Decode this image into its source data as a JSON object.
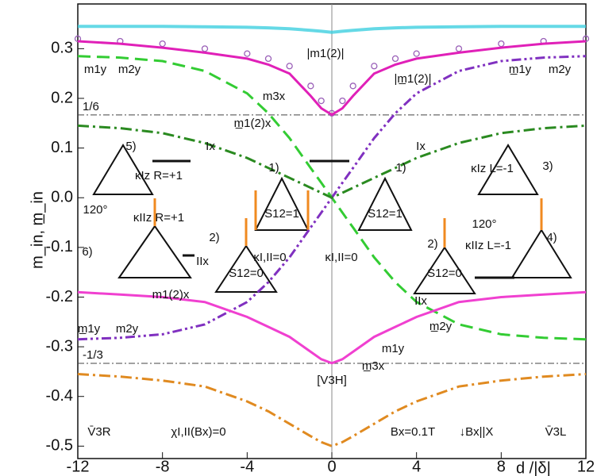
{
  "chart_data": {
    "type": "line",
    "x_label": "d /|δ|",
    "y_label": "m_in, m̲_in",
    "xlim": [
      -12,
      12
    ],
    "ylim": [
      -0.525,
      0.39
    ],
    "xticks": [
      -12,
      -8,
      -4,
      0,
      4,
      8,
      12
    ],
    "yticks": [
      -0.5,
      -0.4,
      -0.3,
      -0.2,
      -0.1,
      {
        "value": 0,
        "label": "0.0"
      },
      0.1,
      0.2,
      0.3
    ],
    "hlines": [
      {
        "value": 0.1667,
        "label": "1/6"
      },
      {
        "value": -0.3333,
        "label": "-1/3"
      }
    ],
    "x": [
      -12,
      -10,
      -8,
      -6,
      -4,
      -3,
      -2,
      -1,
      -0.5,
      0,
      0.5,
      1,
      2,
      3,
      4,
      6,
      8,
      10,
      12
    ],
    "series": [
      {
        "name": "|m1(2)|",
        "color": "#3fd0e0",
        "style": "markers-line",
        "values": [
          0.345,
          0.345,
          0.345,
          0.344,
          0.343,
          0.342,
          0.34,
          0.337,
          0.335,
          0.333,
          0.335,
          0.337,
          0.34,
          0.342,
          0.343,
          0.344,
          0.345,
          0.345,
          0.345
        ]
      },
      {
        "name": "|m̲1(2)|",
        "color": "#9a60b8",
        "style": "circles",
        "values": [
          0.32,
          0.315,
          0.31,
          0.3,
          0.29,
          0.28,
          0.265,
          0.225,
          0.195,
          0.17,
          0.195,
          0.225,
          0.265,
          0.28,
          0.29,
          0.3,
          0.31,
          0.315,
          0.32
        ]
      },
      {
        "name": "m3x",
        "color": "#e020b8",
        "style": "solid",
        "values": [
          0.315,
          0.31,
          0.302,
          0.292,
          0.28,
          0.268,
          0.25,
          0.205,
          0.18,
          0.167,
          0.18,
          0.205,
          0.25,
          0.268,
          0.28,
          0.292,
          0.302,
          0.31,
          0.315
        ]
      },
      {
        "name": "m1y",
        "color": "#33cc33",
        "style": "dash",
        "values": [
          0.285,
          0.282,
          0.275,
          0.255,
          0.21,
          0.17,
          0.12,
          0.06,
          0.03,
          0,
          -0.03,
          -0.06,
          -0.12,
          -0.17,
          -0.21,
          -0.255,
          -0.275,
          -0.282,
          -0.285
        ]
      },
      {
        "name": "m2y",
        "color": "#8030c0",
        "style": "dashdotdot",
        "values": [
          -0.285,
          -0.282,
          -0.275,
          -0.255,
          -0.21,
          -0.17,
          -0.12,
          -0.06,
          -0.03,
          0,
          0.03,
          0.06,
          0.12,
          0.17,
          0.21,
          0.255,
          0.275,
          0.282,
          0.285
        ]
      },
      {
        "name": "m1(2)x",
        "color": "#2a8a20",
        "style": "dashdot",
        "values": [
          0.145,
          0.14,
          0.13,
          0.11,
          0.08,
          0.06,
          0.04,
          0.02,
          0.01,
          0,
          0.01,
          0.02,
          0.04,
          0.06,
          0.08,
          0.11,
          0.13,
          0.14,
          0.145
        ]
      },
      {
        "name": "m̲1(2)x",
        "color": "#f040d0",
        "style": "solid",
        "values": [
          -0.19,
          -0.195,
          -0.2,
          -0.21,
          -0.24,
          -0.26,
          -0.28,
          -0.31,
          -0.325,
          -0.333,
          -0.325,
          -0.31,
          -0.28,
          -0.26,
          -0.24,
          -0.21,
          -0.2,
          -0.195,
          -0.19
        ]
      },
      {
        "name": "m̲3x",
        "color": "#e08a20",
        "style": "dashdot",
        "values": [
          -0.355,
          -0.36,
          -0.368,
          -0.38,
          -0.41,
          -0.43,
          -0.455,
          -0.48,
          -0.492,
          -0.5,
          -0.492,
          -0.48,
          -0.455,
          -0.43,
          -0.41,
          -0.38,
          -0.368,
          -0.36,
          -0.355
        ]
      }
    ],
    "annotations": [
      "|m1(2)|",
      "|m̲1(2)|",
      "m3x",
      "m1y",
      "m2y",
      "m̲1y",
      "m2y",
      "m̲1(2)x",
      "κIz R=+1",
      "κIIz R=+1",
      "120°",
      "Ix",
      "IIx",
      "κI,II=0",
      "κI,II=0",
      "Ix",
      "IIx",
      "κIz L=-1",
      "κIIz L=-1",
      "120°",
      "m1(2)x",
      "m̲1y",
      "m2y",
      "m̲2y",
      "m1y",
      "m̲3x",
      "[V3H]",
      "V̄3R",
      "χI,II(Bx)=0",
      "Bx=0.1T",
      "↓Bx||X",
      "V̄3L",
      "1)",
      "2)",
      "1)",
      "2)",
      "3)",
      "4)",
      "5)",
      "6)",
      "S12=1",
      "S12=0",
      "S12=1",
      "S12=0"
    ]
  }
}
